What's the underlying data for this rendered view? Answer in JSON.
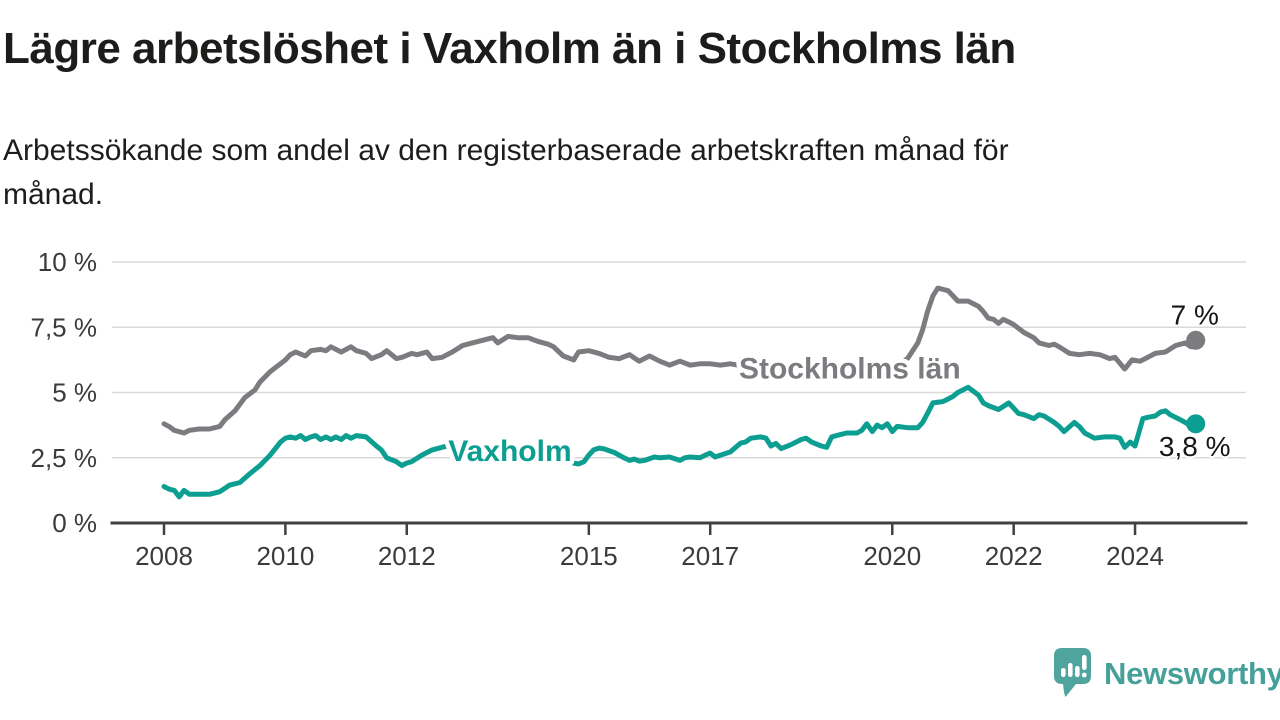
{
  "chart_data": {
    "type": "line",
    "title": "Lägre arbetslöshet i Vaxholm än i Stockholms län",
    "subtitle": "Arbetssökande som andel av den registerbaserade arbetskraften månad för\nmånad.",
    "xlabel": "",
    "ylabel": "",
    "ylim": [
      0,
      10
    ],
    "xlim": [
      2008,
      2025.2
    ],
    "grid": true,
    "legend_position": "inline-labels",
    "y_ticks": [
      {
        "value": 0,
        "label": "0 %"
      },
      {
        "value": 2.5,
        "label": "2,5 %"
      },
      {
        "value": 5,
        "label": "5 %"
      },
      {
        "value": 7.5,
        "label": "7,5 %"
      },
      {
        "value": 10,
        "label": "10 %"
      }
    ],
    "x_ticks": [
      2008,
      2010,
      2012,
      2015,
      2017,
      2020,
      2022,
      2024
    ],
    "series": [
      {
        "name": "Stockholms län",
        "color": "#7c7c80",
        "end_label": "7 %",
        "end_label_position": "above",
        "label_anchor": {
          "x": 2019.3,
          "y": 5.95
        },
        "points": [
          [
            2008.0,
            3.8
          ],
          [
            2008.08,
            3.7
          ],
          [
            2008.17,
            3.55
          ],
          [
            2008.33,
            3.45
          ],
          [
            2008.42,
            3.55
          ],
          [
            2008.58,
            3.6
          ],
          [
            2008.75,
            3.6
          ],
          [
            2008.92,
            3.7
          ],
          [
            2009.0,
            3.95
          ],
          [
            2009.17,
            4.3
          ],
          [
            2009.33,
            4.8
          ],
          [
            2009.5,
            5.1
          ],
          [
            2009.58,
            5.4
          ],
          [
            2009.75,
            5.8
          ],
          [
            2009.92,
            6.1
          ],
          [
            2010.0,
            6.25
          ],
          [
            2010.08,
            6.45
          ],
          [
            2010.17,
            6.55
          ],
          [
            2010.33,
            6.4
          ],
          [
            2010.42,
            6.6
          ],
          [
            2010.58,
            6.65
          ],
          [
            2010.67,
            6.6
          ],
          [
            2010.75,
            6.75
          ],
          [
            2010.92,
            6.55
          ],
          [
            2011.08,
            6.75
          ],
          [
            2011.17,
            6.6
          ],
          [
            2011.33,
            6.5
          ],
          [
            2011.42,
            6.3
          ],
          [
            2011.58,
            6.45
          ],
          [
            2011.67,
            6.6
          ],
          [
            2011.83,
            6.3
          ],
          [
            2011.92,
            6.35
          ],
          [
            2012.08,
            6.5
          ],
          [
            2012.17,
            6.45
          ],
          [
            2012.33,
            6.55
          ],
          [
            2012.42,
            6.3
          ],
          [
            2012.58,
            6.35
          ],
          [
            2012.75,
            6.55
          ],
          [
            2012.92,
            6.8
          ],
          [
            2013.08,
            6.9
          ],
          [
            2013.25,
            7.0
          ],
          [
            2013.42,
            7.1
          ],
          [
            2013.5,
            6.9
          ],
          [
            2013.67,
            7.15
          ],
          [
            2013.83,
            7.1
          ],
          [
            2014.0,
            7.1
          ],
          [
            2014.17,
            6.95
          ],
          [
            2014.33,
            6.85
          ],
          [
            2014.42,
            6.75
          ],
          [
            2014.58,
            6.4
          ],
          [
            2014.75,
            6.25
          ],
          [
            2014.83,
            6.55
          ],
          [
            2015.0,
            6.6
          ],
          [
            2015.17,
            6.5
          ],
          [
            2015.33,
            6.35
          ],
          [
            2015.5,
            6.3
          ],
          [
            2015.67,
            6.45
          ],
          [
            2015.83,
            6.2
          ],
          [
            2016.0,
            6.4
          ],
          [
            2016.17,
            6.2
          ],
          [
            2016.33,
            6.05
          ],
          [
            2016.5,
            6.2
          ],
          [
            2016.67,
            6.05
          ],
          [
            2016.83,
            6.1
          ],
          [
            2017.0,
            6.1
          ],
          [
            2017.17,
            6.05
          ],
          [
            2017.33,
            6.1
          ],
          [
            2017.58,
            6.0
          ],
          [
            2017.83,
            5.95
          ],
          [
            2018.08,
            5.9
          ],
          [
            2018.33,
            5.85
          ],
          [
            2018.58,
            5.8
          ],
          [
            2018.83,
            5.8
          ],
          [
            2019.08,
            5.8
          ],
          [
            2019.33,
            5.85
          ],
          [
            2019.58,
            5.9
          ],
          [
            2019.83,
            5.95
          ],
          [
            2020.08,
            6.05
          ],
          [
            2020.25,
            6.3
          ],
          [
            2020.42,
            6.9
          ],
          [
            2020.5,
            7.4
          ],
          [
            2020.58,
            8.1
          ],
          [
            2020.67,
            8.7
          ],
          [
            2020.75,
            9.0
          ],
          [
            2020.92,
            8.9
          ],
          [
            2021.0,
            8.7
          ],
          [
            2021.08,
            8.5
          ],
          [
            2021.25,
            8.5
          ],
          [
            2021.42,
            8.3
          ],
          [
            2021.5,
            8.1
          ],
          [
            2021.58,
            7.85
          ],
          [
            2021.67,
            7.8
          ],
          [
            2021.75,
            7.65
          ],
          [
            2021.83,
            7.8
          ],
          [
            2021.92,
            7.7
          ],
          [
            2022.0,
            7.6
          ],
          [
            2022.17,
            7.3
          ],
          [
            2022.33,
            7.1
          ],
          [
            2022.42,
            6.9
          ],
          [
            2022.58,
            6.8
          ],
          [
            2022.67,
            6.85
          ],
          [
            2022.75,
            6.75
          ],
          [
            2022.92,
            6.5
          ],
          [
            2023.08,
            6.45
          ],
          [
            2023.25,
            6.5
          ],
          [
            2023.42,
            6.45
          ],
          [
            2023.58,
            6.3
          ],
          [
            2023.67,
            6.35
          ],
          [
            2023.83,
            5.9
          ],
          [
            2023.95,
            6.25
          ],
          [
            2024.08,
            6.2
          ],
          [
            2024.17,
            6.3
          ],
          [
            2024.33,
            6.5
          ],
          [
            2024.5,
            6.55
          ],
          [
            2024.67,
            6.8
          ],
          [
            2024.83,
            6.9
          ],
          [
            2024.92,
            6.75
          ],
          [
            2025.0,
            7.0
          ]
        ]
      },
      {
        "name": "Vaxholm",
        "color": "#0d9e92",
        "end_label": "3,8 %",
        "end_label_position": "below",
        "label_anchor": {
          "x": 2013.7,
          "y": 2.8
        },
        "points": [
          [
            2008.0,
            1.4
          ],
          [
            2008.08,
            1.3
          ],
          [
            2008.17,
            1.25
          ],
          [
            2008.25,
            1.0
          ],
          [
            2008.33,
            1.25
          ],
          [
            2008.42,
            1.1
          ],
          [
            2008.58,
            1.1
          ],
          [
            2008.75,
            1.1
          ],
          [
            2008.92,
            1.2
          ],
          [
            2009.08,
            1.45
          ],
          [
            2009.25,
            1.55
          ],
          [
            2009.42,
            1.9
          ],
          [
            2009.58,
            2.2
          ],
          [
            2009.75,
            2.6
          ],
          [
            2009.92,
            3.1
          ],
          [
            2010.0,
            3.25
          ],
          [
            2010.08,
            3.3
          ],
          [
            2010.17,
            3.25
          ],
          [
            2010.25,
            3.35
          ],
          [
            2010.33,
            3.2
          ],
          [
            2010.42,
            3.3
          ],
          [
            2010.5,
            3.35
          ],
          [
            2010.58,
            3.2
          ],
          [
            2010.67,
            3.3
          ],
          [
            2010.75,
            3.2
          ],
          [
            2010.83,
            3.3
          ],
          [
            2010.92,
            3.2
          ],
          [
            2011.0,
            3.35
          ],
          [
            2011.08,
            3.25
          ],
          [
            2011.17,
            3.35
          ],
          [
            2011.33,
            3.3
          ],
          [
            2011.5,
            2.95
          ],
          [
            2011.58,
            2.8
          ],
          [
            2011.67,
            2.5
          ],
          [
            2011.83,
            2.35
          ],
          [
            2011.92,
            2.2
          ],
          [
            2012.0,
            2.3
          ],
          [
            2012.08,
            2.35
          ],
          [
            2012.25,
            2.6
          ],
          [
            2012.42,
            2.8
          ],
          [
            2012.58,
            2.9
          ],
          [
            2012.75,
            3.0
          ],
          [
            2012.92,
            2.9
          ],
          [
            2013.08,
            2.9
          ],
          [
            2013.33,
            2.9
          ],
          [
            2013.58,
            2.85
          ],
          [
            2013.83,
            2.8
          ],
          [
            2014.08,
            2.7
          ],
          [
            2014.33,
            2.55
          ],
          [
            2014.58,
            2.4
          ],
          [
            2014.75,
            2.3
          ],
          [
            2014.83,
            2.26
          ],
          [
            2014.92,
            2.35
          ],
          [
            2015.0,
            2.6
          ],
          [
            2015.08,
            2.8
          ],
          [
            2015.17,
            2.87
          ],
          [
            2015.25,
            2.84
          ],
          [
            2015.42,
            2.7
          ],
          [
            2015.58,
            2.5
          ],
          [
            2015.67,
            2.4
          ],
          [
            2015.75,
            2.45
          ],
          [
            2015.83,
            2.37
          ],
          [
            2015.92,
            2.4
          ],
          [
            2016.08,
            2.53
          ],
          [
            2016.17,
            2.5
          ],
          [
            2016.33,
            2.53
          ],
          [
            2016.5,
            2.4
          ],
          [
            2016.58,
            2.5
          ],
          [
            2016.67,
            2.53
          ],
          [
            2016.83,
            2.5
          ],
          [
            2016.92,
            2.6
          ],
          [
            2017.0,
            2.68
          ],
          [
            2017.08,
            2.53
          ],
          [
            2017.17,
            2.6
          ],
          [
            2017.33,
            2.72
          ],
          [
            2017.42,
            2.9
          ],
          [
            2017.5,
            3.06
          ],
          [
            2017.58,
            3.1
          ],
          [
            2017.67,
            3.25
          ],
          [
            2017.83,
            3.3
          ],
          [
            2017.92,
            3.25
          ],
          [
            2018.0,
            2.95
          ],
          [
            2018.08,
            3.05
          ],
          [
            2018.17,
            2.85
          ],
          [
            2018.33,
            3.0
          ],
          [
            2018.5,
            3.2
          ],
          [
            2018.58,
            3.25
          ],
          [
            2018.67,
            3.1
          ],
          [
            2018.83,
            2.95
          ],
          [
            2018.92,
            2.9
          ],
          [
            2019.0,
            3.3
          ],
          [
            2019.08,
            3.35
          ],
          [
            2019.25,
            3.45
          ],
          [
            2019.42,
            3.45
          ],
          [
            2019.5,
            3.55
          ],
          [
            2019.58,
            3.8
          ],
          [
            2019.67,
            3.5
          ],
          [
            2019.75,
            3.75
          ],
          [
            2019.83,
            3.65
          ],
          [
            2019.92,
            3.8
          ],
          [
            2020.0,
            3.5
          ],
          [
            2020.08,
            3.7
          ],
          [
            2020.25,
            3.65
          ],
          [
            2020.42,
            3.65
          ],
          [
            2020.5,
            3.85
          ],
          [
            2020.58,
            4.2
          ],
          [
            2020.67,
            4.6
          ],
          [
            2020.83,
            4.65
          ],
          [
            2020.92,
            4.75
          ],
          [
            2021.0,
            4.85
          ],
          [
            2021.08,
            5.0
          ],
          [
            2021.25,
            5.2
          ],
          [
            2021.42,
            4.9
          ],
          [
            2021.5,
            4.6
          ],
          [
            2021.58,
            4.5
          ],
          [
            2021.75,
            4.35
          ],
          [
            2021.92,
            4.6
          ],
          [
            2022.0,
            4.4
          ],
          [
            2022.08,
            4.2
          ],
          [
            2022.17,
            4.15
          ],
          [
            2022.33,
            4.0
          ],
          [
            2022.42,
            4.15
          ],
          [
            2022.5,
            4.1
          ],
          [
            2022.67,
            3.85
          ],
          [
            2022.75,
            3.7
          ],
          [
            2022.83,
            3.5
          ],
          [
            2023.0,
            3.85
          ],
          [
            2023.08,
            3.7
          ],
          [
            2023.17,
            3.45
          ],
          [
            2023.33,
            3.25
          ],
          [
            2023.5,
            3.3
          ],
          [
            2023.67,
            3.3
          ],
          [
            2023.75,
            3.25
          ],
          [
            2023.83,
            2.9
          ],
          [
            2023.92,
            3.1
          ],
          [
            2024.0,
            2.95
          ],
          [
            2024.13,
            4.0
          ],
          [
            2024.21,
            4.05
          ],
          [
            2024.33,
            4.1
          ],
          [
            2024.42,
            4.25
          ],
          [
            2024.5,
            4.3
          ],
          [
            2024.58,
            4.15
          ],
          [
            2024.75,
            3.95
          ],
          [
            2024.83,
            3.85
          ],
          [
            2024.92,
            3.7
          ],
          [
            2025.0,
            3.8
          ]
        ]
      }
    ]
  },
  "branding": {
    "wordmark": "Newsworthy",
    "logo_color": "#4fa59e"
  }
}
